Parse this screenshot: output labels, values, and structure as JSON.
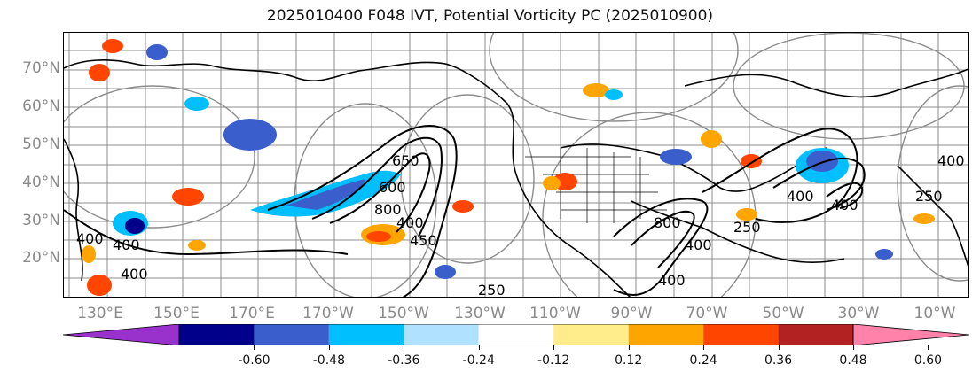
{
  "title": "2025010400 F048 IVT, Potential Vorticity PC (2025010900)",
  "lat_labels": [
    "70°N",
    "60°N",
    "50°N",
    "40°N",
    "30°N",
    "20°N"
  ],
  "lon_labels": [
    "130°E",
    "150°E",
    "170°E",
    "170°W",
    "150°W",
    "130°W",
    "110°W",
    "90°W",
    "70°W",
    "50°W",
    "30°W",
    "10°W"
  ],
  "contour_labels": [
    "400",
    "400",
    "250",
    "800",
    "600",
    "650",
    "400",
    "250",
    "800",
    "400",
    "250",
    "400",
    "400",
    "400",
    "400",
    "450",
    "400"
  ],
  "colorbar": {
    "colors": [
      "#9932cc",
      "#00008b",
      "#3a5fcd",
      "#00bfff",
      "#b0e2ff",
      "#ffffff",
      "#ffec8b",
      "#ffa500",
      "#ff4500",
      "#b22222",
      "#ff82ab"
    ],
    "ticks": [
      "-0.60",
      "-0.48",
      "-0.36",
      "-0.24",
      "-0.12",
      "0.12",
      "0.24",
      "0.36",
      "0.48",
      "0.60"
    ]
  }
}
